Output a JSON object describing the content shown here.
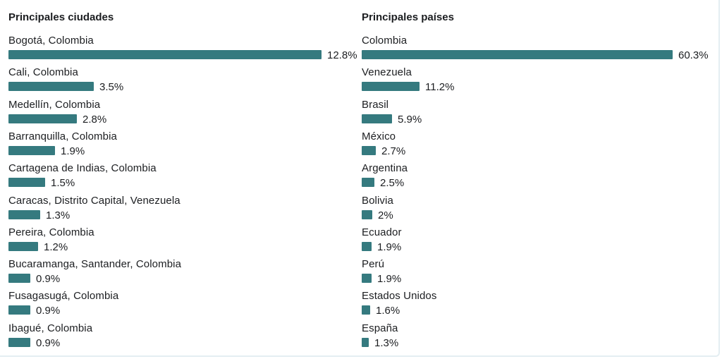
{
  "chart_data": [
    {
      "type": "bar",
      "title": "Principales ciudades",
      "categories": [
        "Bogotá, Colombia",
        "Cali, Colombia",
        "Medellín, Colombia",
        "Barranquilla, Colombia",
        "Cartagena de Indias, Colombia",
        "Caracas, Distrito Capital, Venezuela",
        "Pereira, Colombia",
        "Bucaramanga, Santander, Colombia",
        "Fusagasugá, Colombia",
        "Ibagué, Colombia"
      ],
      "values": [
        12.8,
        3.5,
        2.8,
        1.9,
        1.5,
        1.3,
        1.2,
        0.9,
        0.9,
        0.9
      ],
      "value_labels": [
        "12.8%",
        "3.5%",
        "2.8%",
        "1.9%",
        "1.5%",
        "1.3%",
        "1.2%",
        "0.9%",
        "0.9%",
        "0.9%"
      ],
      "unit": "%",
      "orientation": "horizontal",
      "bar_color": "#357a7f"
    },
    {
      "type": "bar",
      "title": "Principales países",
      "categories": [
        "Colombia",
        "Venezuela",
        "Brasil",
        "México",
        "Argentina",
        "Bolivia",
        "Ecuador",
        "Perú",
        "Estados Unidos",
        "España"
      ],
      "values": [
        60.3,
        11.2,
        5.9,
        2.7,
        2.5,
        2,
        1.9,
        1.9,
        1.6,
        1.3
      ],
      "value_labels": [
        "60.3%",
        "11.2%",
        "5.9%",
        "2.7%",
        "2.5%",
        "2%",
        "1.9%",
        "1.9%",
        "1.6%",
        "1.3%"
      ],
      "unit": "%",
      "orientation": "horizontal",
      "bar_color": "#357a7f"
    }
  ]
}
